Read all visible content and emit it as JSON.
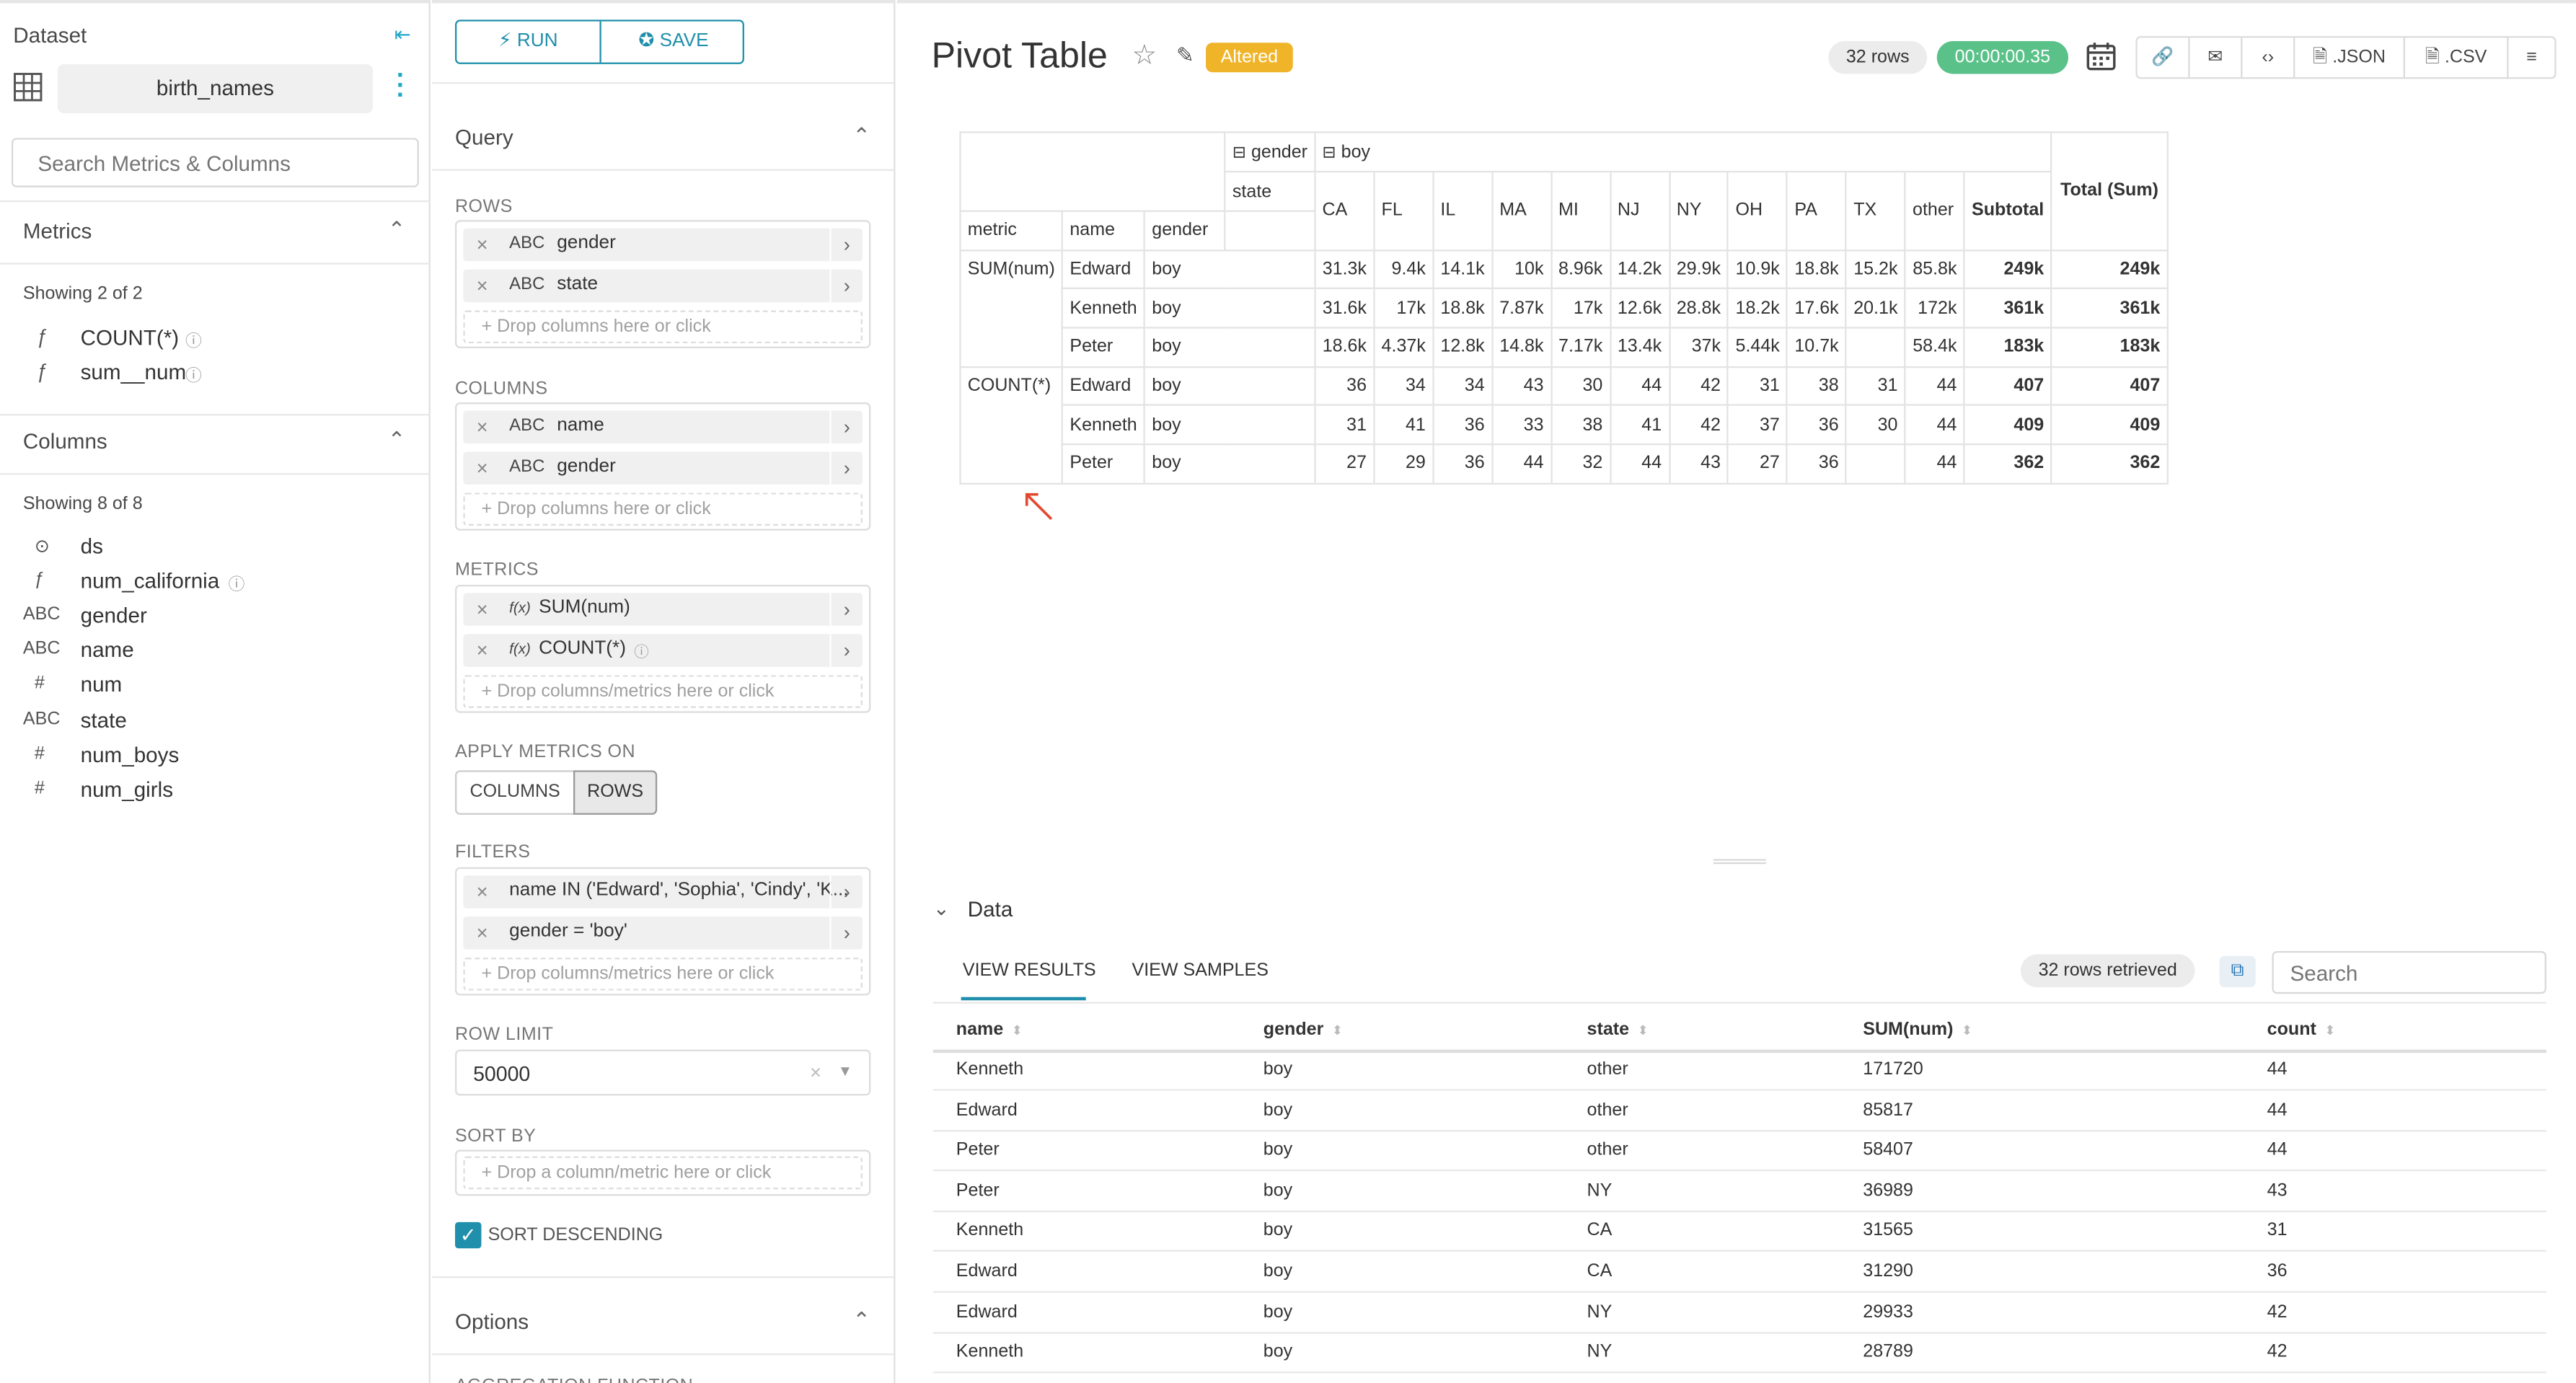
{
  "dataset": {
    "header": "Dataset",
    "name": "birth_names",
    "search_placeholder": "Search Metrics & Columns",
    "metrics_title": "Metrics",
    "metrics_showing": "Showing 2 of 2",
    "metrics": [
      {
        "type": "ƒ",
        "name": "COUNT(*)"
      },
      {
        "type": "ƒ",
        "name": "sum__num"
      }
    ],
    "columns_title": "Columns",
    "columns_showing": "Showing 8 of 8",
    "columns": [
      {
        "type": "⊙",
        "name": "ds"
      },
      {
        "type": "ƒ",
        "name": "num_california"
      },
      {
        "type": "ABC",
        "name": "gender"
      },
      {
        "type": "ABC",
        "name": "name"
      },
      {
        "type": "#",
        "name": "num"
      },
      {
        "type": "ABC",
        "name": "state"
      },
      {
        "type": "#",
        "name": "num_boys"
      },
      {
        "type": "#",
        "name": "num_girls"
      }
    ]
  },
  "query": {
    "run_label": "RUN",
    "save_label": "SAVE",
    "title": "Query",
    "rows_label": "ROWS",
    "rows": [
      {
        "type": "ABC",
        "name": "gender"
      },
      {
        "type": "ABC",
        "name": "state"
      }
    ],
    "drop_columns": "Drop columns here or click",
    "columns_label": "COLUMNS",
    "columns": [
      {
        "type": "ABC",
        "name": "name"
      },
      {
        "type": "ABC",
        "name": "gender"
      }
    ],
    "metrics_label": "METRICS",
    "metrics": [
      {
        "type": "f(x)",
        "name": "SUM(num)"
      },
      {
        "type": "f(x)",
        "name": "COUNT(*)"
      }
    ],
    "drop_metrics": "Drop columns/metrics here or click",
    "apply_label": "APPLY METRICS ON",
    "apply_columns": "COLUMNS",
    "apply_rows": "ROWS",
    "filters_label": "FILTERS",
    "filters": [
      "name IN ('Edward', 'Sophia', 'Cindy', 'K...",
      "gender = 'boy'"
    ],
    "row_limit_label": "ROW LIMIT",
    "row_limit": "50000",
    "sort_by_label": "SORT BY",
    "sort_by_placeholder": "Drop a column/metric here or click",
    "sort_desc_label": "SORT DESCENDING",
    "options_title": "Options",
    "agg_label": "AGGREGATION FUNCTION"
  },
  "chart": {
    "title": "Pivot Table",
    "altered": "Altered",
    "rows_badge": "32 rows",
    "time_badge": "00:00:00.35",
    "json": ".JSON",
    "csv": ".CSV"
  },
  "pivot": {
    "gender_hdr": "gender",
    "boy_hdr": "boy",
    "state_hdr": "state",
    "metric_hdr": "metric",
    "name_hdr": "name",
    "gender_col_hdr": "gender",
    "states": [
      "CA",
      "FL",
      "IL",
      "MA",
      "MI",
      "NJ",
      "NY",
      "OH",
      "PA",
      "TX",
      "other"
    ],
    "subtotal": "Subtotal",
    "total": "Total (Sum)",
    "rows": [
      {
        "metric": "SUM(num)",
        "name": "Edward",
        "gender": "boy",
        "vals": [
          "31.3k",
          "9.4k",
          "14.1k",
          "10k",
          "8.96k",
          "14.2k",
          "29.9k",
          "10.9k",
          "18.8k",
          "15.2k",
          "85.8k"
        ],
        "sub": "249k",
        "tot": "249k"
      },
      {
        "metric": "",
        "name": "Kenneth",
        "gender": "boy",
        "vals": [
          "31.6k",
          "17k",
          "18.8k",
          "7.87k",
          "17k",
          "12.6k",
          "28.8k",
          "18.2k",
          "17.6k",
          "20.1k",
          "172k"
        ],
        "sub": "361k",
        "tot": "361k"
      },
      {
        "metric": "",
        "name": "Peter",
        "gender": "boy",
        "vals": [
          "18.6k",
          "4.37k",
          "12.8k",
          "14.8k",
          "7.17k",
          "13.4k",
          "37k",
          "5.44k",
          "10.7k",
          "",
          "58.4k"
        ],
        "sub": "183k",
        "tot": "183k"
      },
      {
        "metric": "COUNT(*)",
        "name": "Edward",
        "gender": "boy",
        "vals": [
          "36",
          "34",
          "34",
          "43",
          "30",
          "44",
          "42",
          "31",
          "38",
          "31",
          "44"
        ],
        "sub": "407",
        "tot": "407"
      },
      {
        "metric": "",
        "name": "Kenneth",
        "gender": "boy",
        "vals": [
          "31",
          "41",
          "36",
          "33",
          "38",
          "41",
          "42",
          "37",
          "36",
          "30",
          "44"
        ],
        "sub": "409",
        "tot": "409"
      },
      {
        "metric": "",
        "name": "Peter",
        "gender": "boy",
        "vals": [
          "27",
          "29",
          "36",
          "44",
          "32",
          "44",
          "43",
          "27",
          "36",
          "",
          "44"
        ],
        "sub": "362",
        "tot": "362"
      }
    ]
  },
  "data_panel": {
    "title": "Data",
    "tab_results": "VIEW RESULTS",
    "tab_samples": "VIEW SAMPLES",
    "retrieved": "32 rows retrieved",
    "search_placeholder": "Search",
    "headers": [
      "name",
      "gender",
      "state",
      "SUM(num)",
      "count"
    ],
    "rows": [
      [
        "Kenneth",
        "boy",
        "other",
        "171720",
        "44"
      ],
      [
        "Edward",
        "boy",
        "other",
        "85817",
        "44"
      ],
      [
        "Peter",
        "boy",
        "other",
        "58407",
        "44"
      ],
      [
        "Peter",
        "boy",
        "NY",
        "36989",
        "43"
      ],
      [
        "Kenneth",
        "boy",
        "CA",
        "31565",
        "31"
      ],
      [
        "Edward",
        "boy",
        "CA",
        "31290",
        "36"
      ],
      [
        "Edward",
        "boy",
        "NY",
        "29933",
        "42"
      ],
      [
        "Kenneth",
        "boy",
        "NY",
        "28789",
        "42"
      ]
    ]
  }
}
